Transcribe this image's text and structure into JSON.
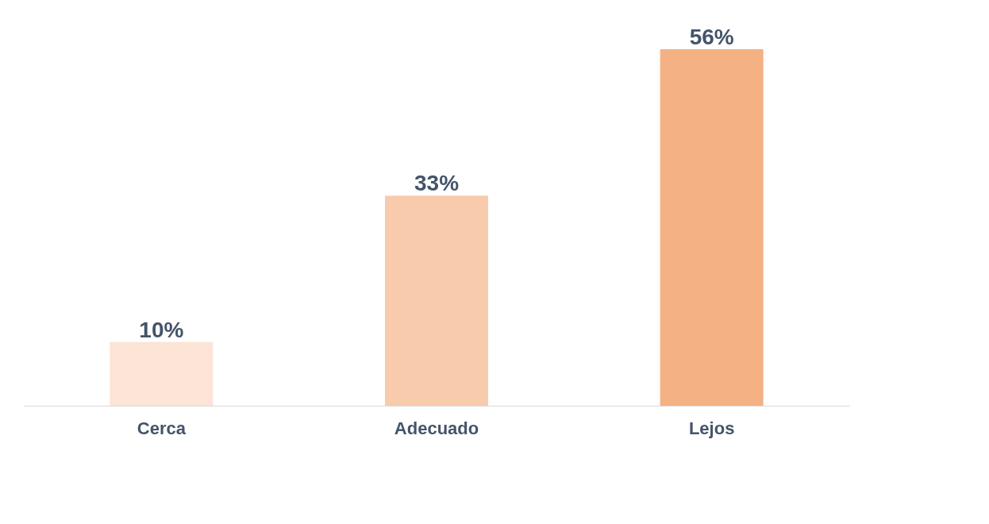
{
  "chart_data": {
    "type": "bar",
    "categories": [
      "Cerca",
      "Adecuado",
      "Lejos"
    ],
    "values": [
      10,
      33,
      56
    ],
    "colors": [
      "#fce4d6",
      "#f8cbad",
      "#f4b183"
    ],
    "data_labels": true,
    "value_labels": [
      "10%",
      "33%",
      "56%"
    ],
    "tick_labels": "x"
  }
}
